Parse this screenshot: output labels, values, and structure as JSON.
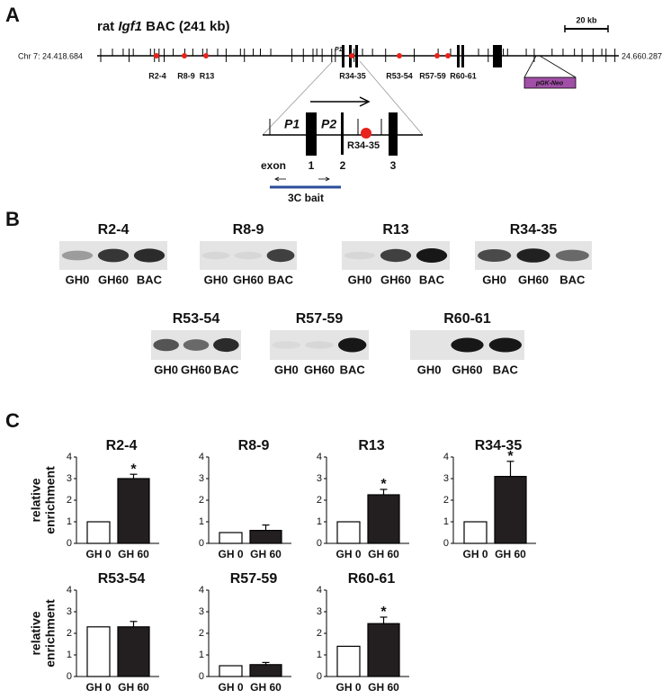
{
  "panel_a": {
    "label": "A",
    "title": [
      "rat ",
      "Igf1",
      " BAC (241 kb)"
    ],
    "scale": "20 kb",
    "chr_start": "Chr 7: 24.418.684",
    "chr_end": "24.660.287",
    "p1_small": "P1",
    "regions": [
      "R2-4",
      "R8-9",
      "R13",
      "R34-35",
      "R53-54",
      "R57-59",
      "R60-61"
    ],
    "neo": "pGK-Neo",
    "zoom": {
      "p1": "P1",
      "p2": "P2",
      "region": "R34-35",
      "exon": "exon",
      "exons": [
        "1",
        "2",
        "3"
      ],
      "bait": "3C bait"
    }
  },
  "panel_b": {
    "label": "B",
    "lanes": [
      "GH0",
      "GH60",
      "BAC"
    ],
    "gels": [
      "R2-4",
      "R8-9",
      "R13",
      "R34-35",
      "R53-54",
      "R57-59",
      "R60-61"
    ]
  },
  "panel_c": {
    "label": "C"
  },
  "chart_data": [
    {
      "type": "bar",
      "title": "R2-4",
      "ylabel": [
        "relative",
        "enrichment"
      ],
      "categories": [
        "GH 0",
        "GH 60"
      ],
      "values": [
        1,
        3
      ],
      "errors": [
        null,
        0.2
      ],
      "colors": [
        "#ffffff",
        "#231f20"
      ],
      "ylim": [
        0,
        4
      ],
      "yticks": [
        0,
        1,
        2,
        3,
        4
      ],
      "annotation": "*"
    },
    {
      "type": "bar",
      "title": "R8-9",
      "categories": [
        "GH 0",
        "GH 60"
      ],
      "values": [
        0.5,
        0.6
      ],
      "errors": [
        null,
        0.25
      ],
      "colors": [
        "#ffffff",
        "#231f20"
      ],
      "ylim": [
        0,
        4
      ],
      "yticks": [
        0,
        1,
        2,
        3,
        4
      ]
    },
    {
      "type": "bar",
      "title": "R13",
      "categories": [
        "GH 0",
        "GH 60"
      ],
      "values": [
        1,
        2.25
      ],
      "errors": [
        null,
        0.25
      ],
      "colors": [
        "#ffffff",
        "#231f20"
      ],
      "ylim": [
        0,
        4
      ],
      "yticks": [
        0,
        1,
        2,
        3,
        4
      ],
      "annotation": "*"
    },
    {
      "type": "bar",
      "title": "R34-35",
      "categories": [
        "GH 0",
        "GH 60"
      ],
      "values": [
        1,
        3.1
      ],
      "errors": [
        null,
        0.7
      ],
      "colors": [
        "#ffffff",
        "#231f20"
      ],
      "ylim": [
        0,
        4
      ],
      "yticks": [
        0,
        1,
        2,
        3,
        4
      ],
      "annotation": "*"
    },
    {
      "type": "bar",
      "title": "R53-54",
      "ylabel": [
        "relative",
        "enrichment"
      ],
      "categories": [
        "GH 0",
        "GH 60"
      ],
      "values": [
        2.3,
        2.3
      ],
      "errors": [
        null,
        0.25
      ],
      "colors": [
        "#ffffff",
        "#231f20"
      ],
      "ylim": [
        0,
        4
      ],
      "yticks": [
        0,
        1,
        2,
        3,
        4
      ]
    },
    {
      "type": "bar",
      "title": "R57-59",
      "categories": [
        "GH 0",
        "GH 60"
      ],
      "values": [
        0.5,
        0.55
      ],
      "errors": [
        null,
        0.1
      ],
      "colors": [
        "#ffffff",
        "#231f20"
      ],
      "ylim": [
        0,
        4
      ],
      "yticks": [
        0,
        1,
        2,
        3,
        4
      ]
    },
    {
      "type": "bar",
      "title": "R60-61",
      "categories": [
        "GH 0",
        "GH 60"
      ],
      "values": [
        1.4,
        2.45
      ],
      "errors": [
        null,
        0.3
      ],
      "colors": [
        "#ffffff",
        "#231f20"
      ],
      "ylim": [
        0,
        4
      ],
      "yticks": [
        0,
        1,
        2,
        3,
        4
      ],
      "annotation": "*"
    }
  ]
}
